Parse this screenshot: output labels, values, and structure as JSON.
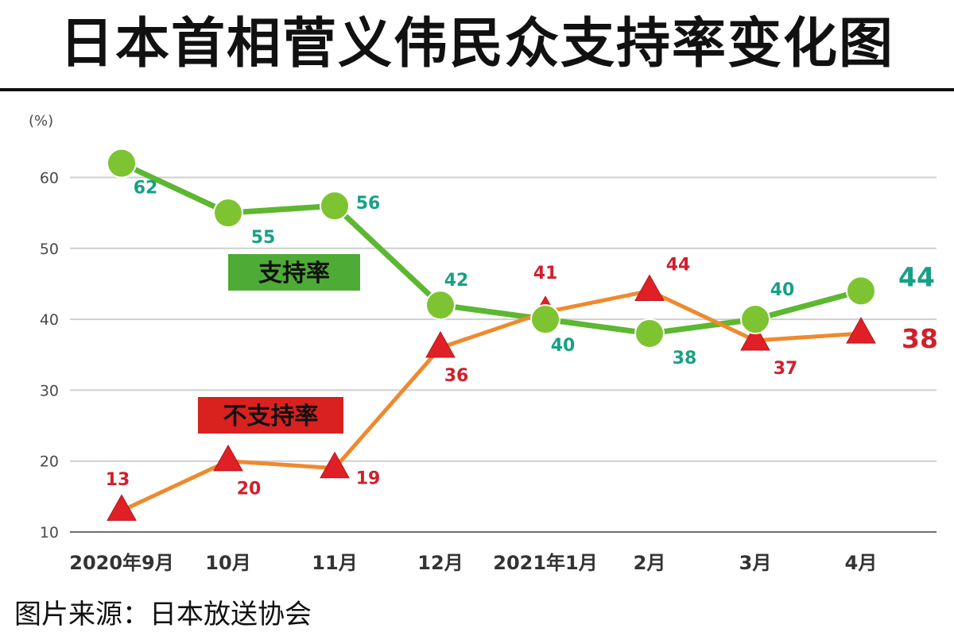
{
  "title": "日本首相菅义伟民众支持率变化图",
  "source": "图片来源：日本放送协会",
  "chart_data": {
    "type": "line",
    "categories": [
      "2020年9月",
      "10月",
      "11月",
      "12月",
      "2021年1月",
      "2月",
      "3月",
      "4月"
    ],
    "y_unit": "(%)",
    "ylim": [
      10,
      65
    ],
    "y_ticks": [
      10,
      20,
      30,
      40,
      50,
      60
    ],
    "grid": true,
    "series": [
      {
        "name": "支持率",
        "values": [
          62,
          55,
          56,
          42,
          40,
          38,
          40,
          44
        ],
        "line_color": "#5db731",
        "marker_color": "#7ec432",
        "label_color": "#18a085",
        "marker": "circle"
      },
      {
        "name": "不支持率",
        "values": [
          13,
          20,
          19,
          36,
          41,
          44,
          37,
          38
        ],
        "line_color": "#ee8a2e",
        "marker_color": "#e11f26",
        "label_color": "#d11f2c",
        "marker": "triangle"
      }
    ],
    "legend": [
      {
        "label": "支持率",
        "color": "#4eab36"
      },
      {
        "label": "不支持率",
        "color": "#d9211f"
      }
    ]
  }
}
